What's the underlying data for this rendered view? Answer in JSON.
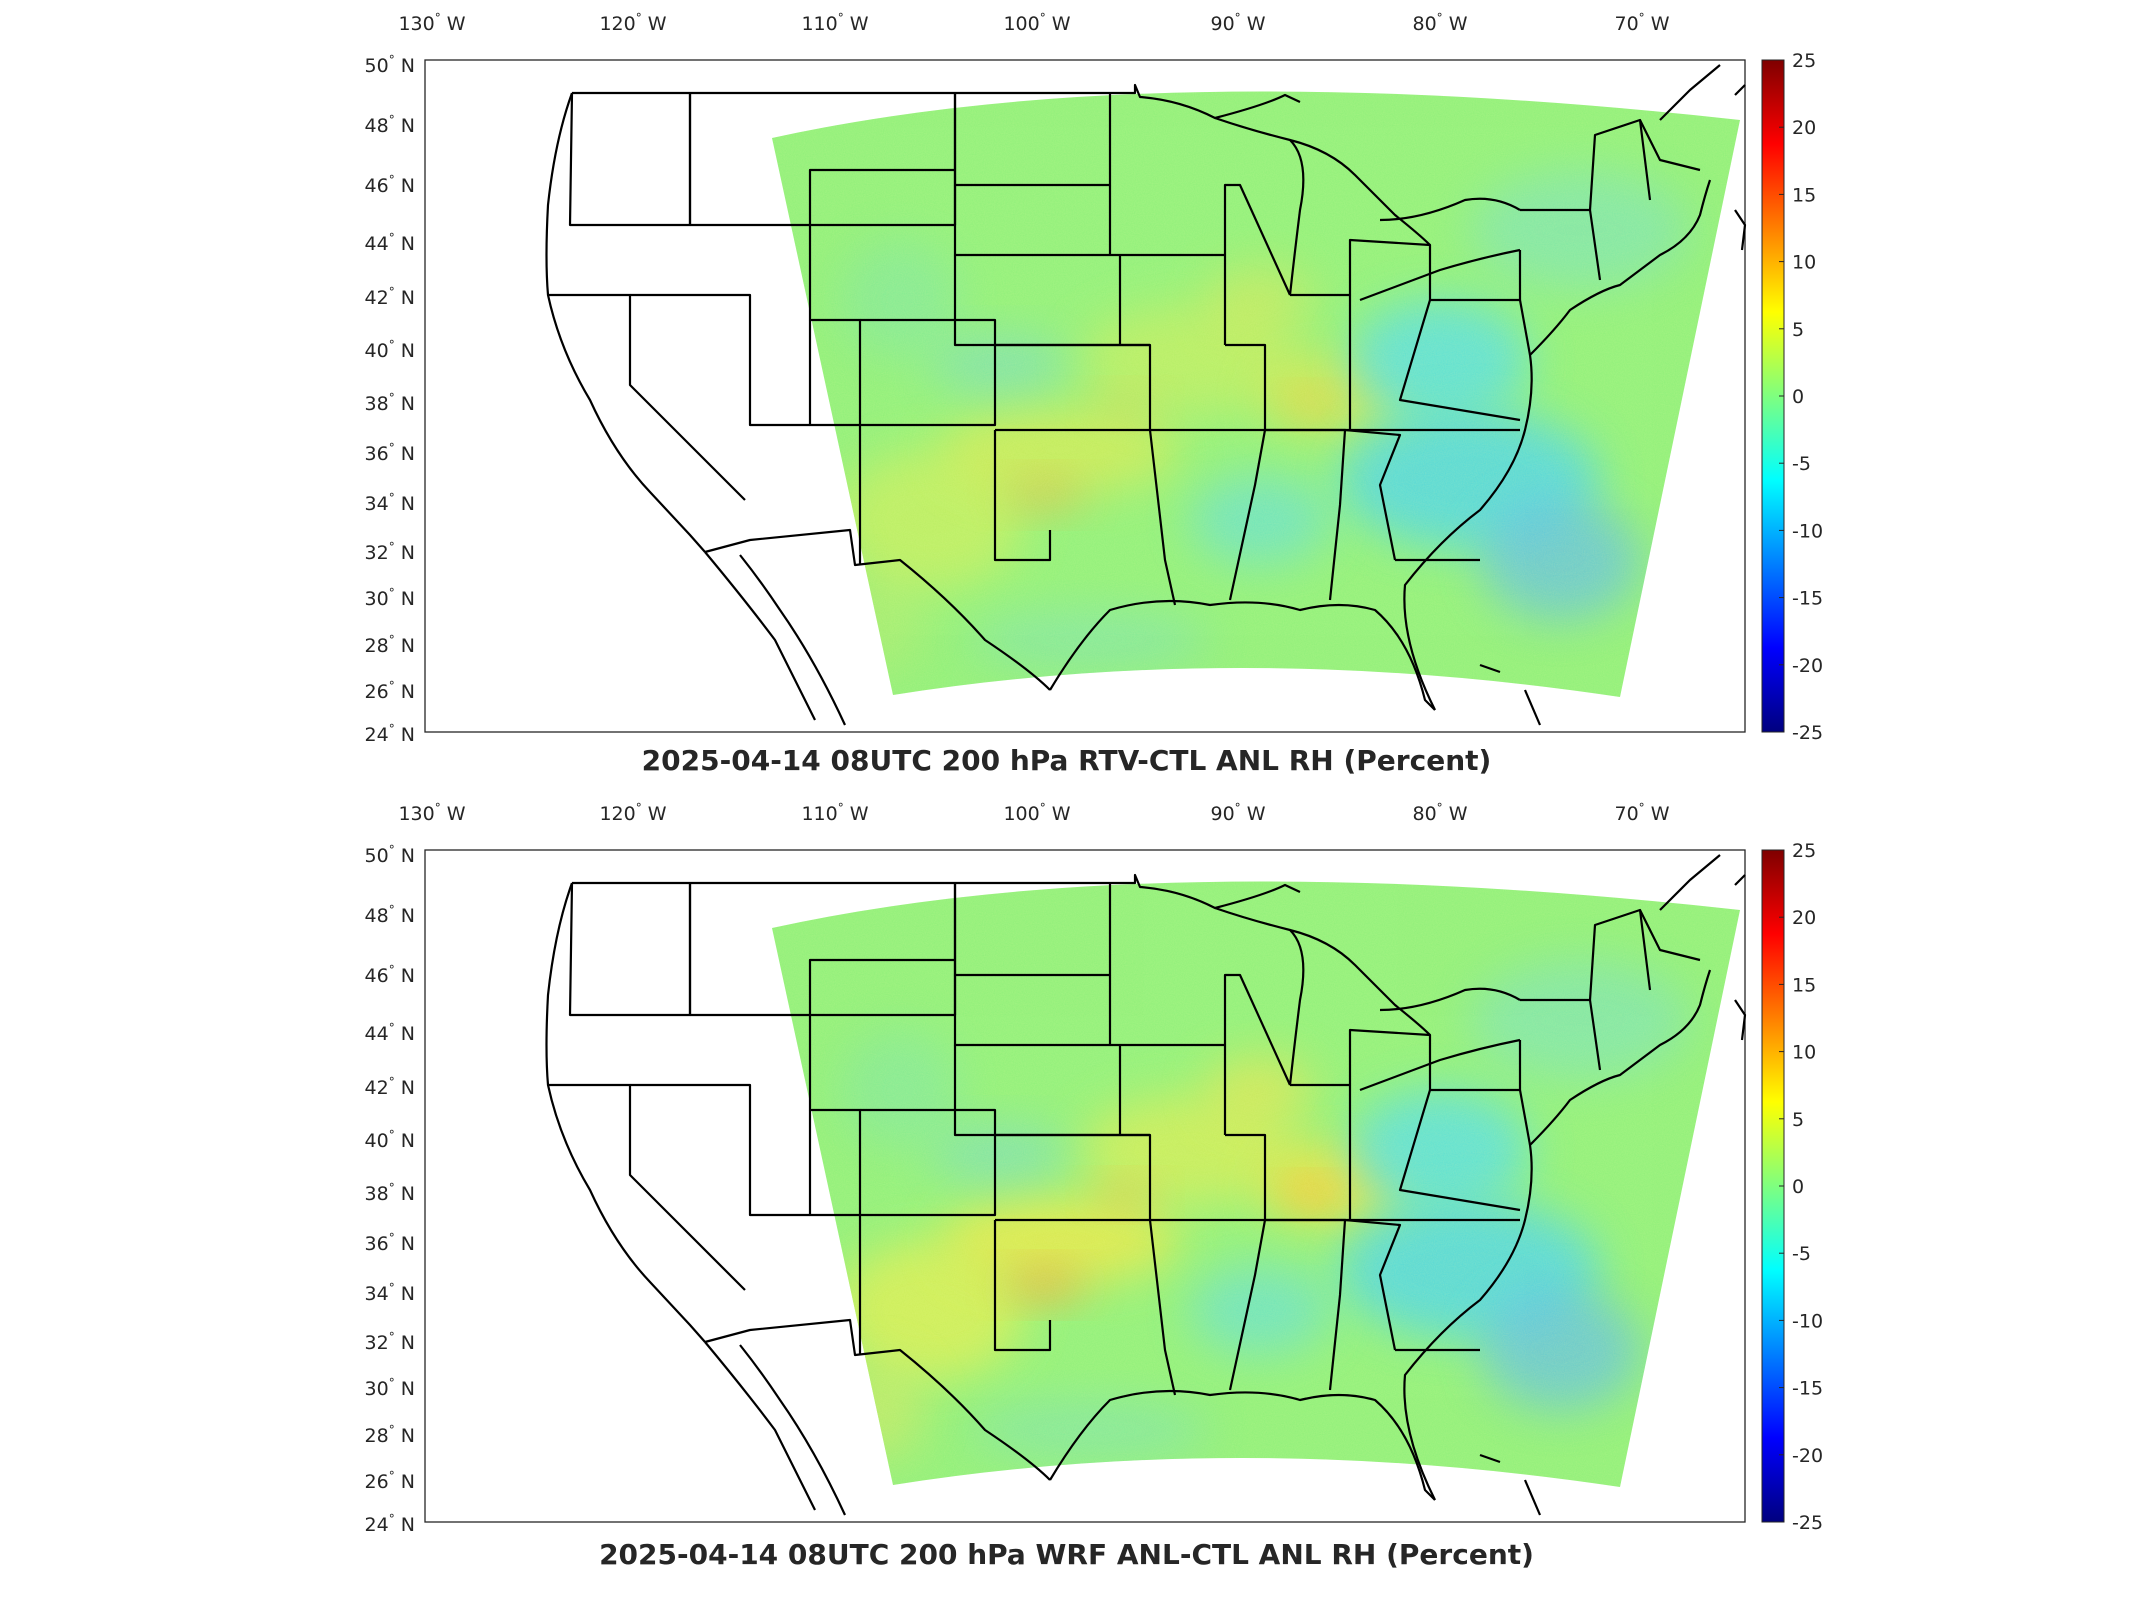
{
  "panels": [
    {
      "title": "2025-04-14 08UTC 200 hPa RTV-CTL ANL RH (Percent)",
      "variant": "rtv"
    },
    {
      "title": "2025-04-14 08UTC 200 hPa WRF ANL-CTL ANL RH (Percent)",
      "variant": "wrf"
    }
  ],
  "lon_labels": [
    "130",
    "120",
    "110",
    "100",
    "90",
    "80",
    "70"
  ],
  "lon_suffix": "W",
  "lat_labels": [
    "50",
    "48",
    "46",
    "44",
    "42",
    "40",
    "38",
    "36",
    "34",
    "32",
    "30",
    "28",
    "26",
    "24"
  ],
  "lat_suffix": "N",
  "degree_symbol": "°",
  "colorbar": {
    "ticks": [
      "25",
      "20",
      "15",
      "10",
      "5",
      "0",
      "-5",
      "-10",
      "-15",
      "-20",
      "-25"
    ],
    "colormap": "jet",
    "colors": [
      "#00007f",
      "#0000ff",
      "#007fff",
      "#00ffff",
      "#7fff7f",
      "#ffff00",
      "#ff7f00",
      "#ff0000",
      "#7f0000"
    ]
  },
  "map_fill_base": "#8ff07a"
}
